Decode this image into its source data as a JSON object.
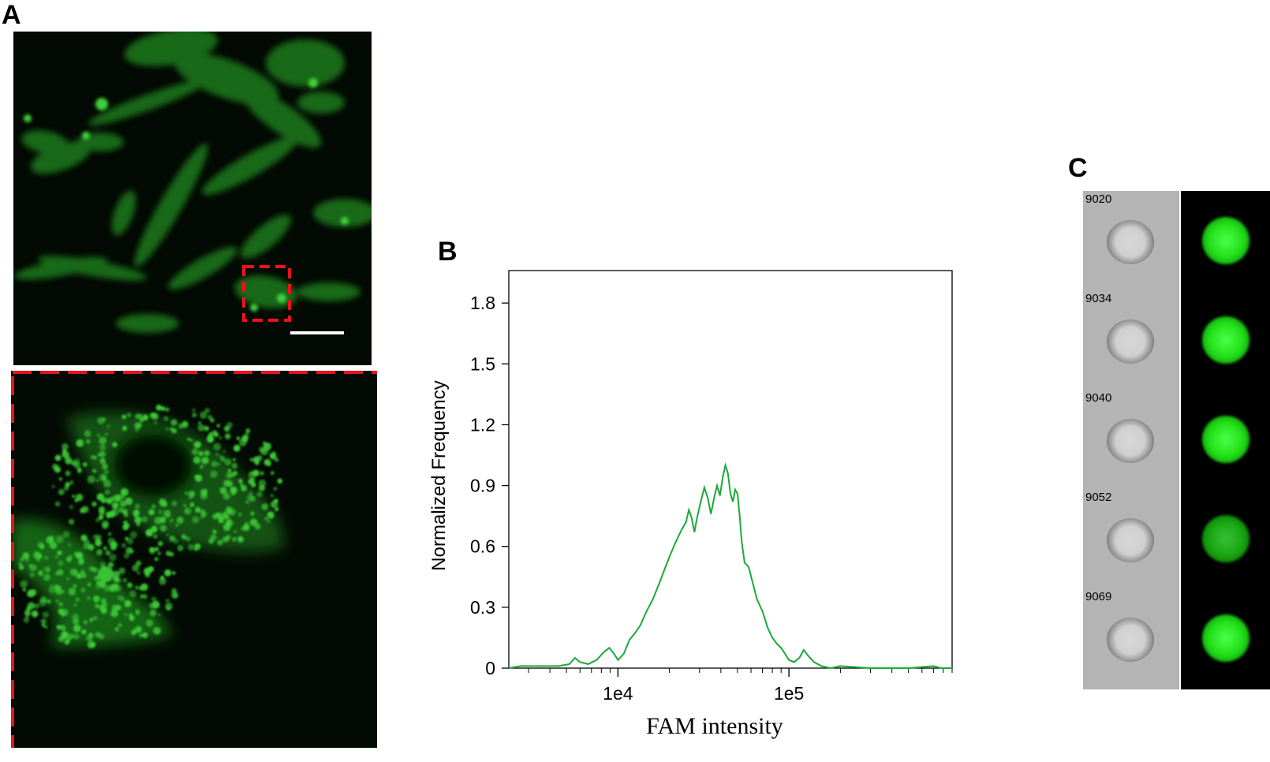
{
  "panels": {
    "a": {
      "letter": "A"
    },
    "b": {
      "letter": "B"
    },
    "c": {
      "letter": "C"
    }
  },
  "colors": {
    "fluorescence": "#2fd12a",
    "roi_box": "#e8141b",
    "histogram_line": "#1aaa3a",
    "scale_bar": "#ffffff"
  },
  "chart_data": {
    "type": "line",
    "xlabel": "FAM intensity",
    "ylabel": "Normalized Frequency",
    "xscale": "log",
    "xlim": [
      2300,
      900000
    ],
    "ylim": [
      0,
      1.96
    ],
    "xticks": [
      10000,
      100000
    ],
    "xtick_labels": [
      "1e4",
      "1e5"
    ],
    "yticks": [
      0,
      0.3,
      0.6,
      0.9,
      1.2,
      1.5,
      1.8
    ],
    "ytick_labels": [
      "0",
      "0.3",
      "0.6",
      "0.9",
      "1.2",
      "1.5",
      "1.8"
    ],
    "legend": "none",
    "grid": false,
    "series": [
      {
        "x": [
          2300,
          2700,
          3500,
          4500,
          5200,
          5600,
          6000,
          6700,
          7500,
          8300,
          8900,
          9500,
          10000,
          10800,
          11700,
          12500,
          13500,
          14700,
          16000,
          17500,
          19000,
          20500,
          22000,
          23500,
          25000,
          26000,
          27000,
          28000,
          29000,
          30500,
          32000,
          33500,
          35000,
          36500,
          38000,
          39500,
          41000,
          42500,
          44000,
          45500,
          47000,
          48500,
          50000,
          51500,
          53000,
          55000,
          58000,
          61000,
          65000,
          70000,
          75000,
          80000,
          85000,
          90000,
          95000,
          100000,
          107000,
          115000,
          122000,
          130000,
          140000,
          155000,
          175000,
          200000,
          300000,
          500000,
          700000,
          780000,
          900000
        ],
        "y": [
          0,
          0.01,
          0.01,
          0.01,
          0.02,
          0.05,
          0.03,
          0.02,
          0.04,
          0.08,
          0.1,
          0.07,
          0.04,
          0.07,
          0.14,
          0.17,
          0.21,
          0.28,
          0.34,
          0.42,
          0.5,
          0.57,
          0.63,
          0.68,
          0.72,
          0.78,
          0.74,
          0.67,
          0.74,
          0.82,
          0.89,
          0.84,
          0.76,
          0.84,
          0.9,
          0.85,
          0.94,
          1.0,
          0.96,
          0.86,
          0.82,
          0.88,
          0.86,
          0.75,
          0.62,
          0.52,
          0.5,
          0.43,
          0.34,
          0.28,
          0.2,
          0.15,
          0.12,
          0.1,
          0.07,
          0.04,
          0.03,
          0.05,
          0.09,
          0.06,
          0.03,
          0.01,
          0,
          0.01,
          0,
          0,
          0.01,
          0,
          0
        ]
      }
    ]
  },
  "cells": [
    {
      "id": "9020"
    },
    {
      "id": "9034"
    },
    {
      "id": "9040"
    },
    {
      "id": "9052"
    },
    {
      "id": "9069"
    }
  ]
}
